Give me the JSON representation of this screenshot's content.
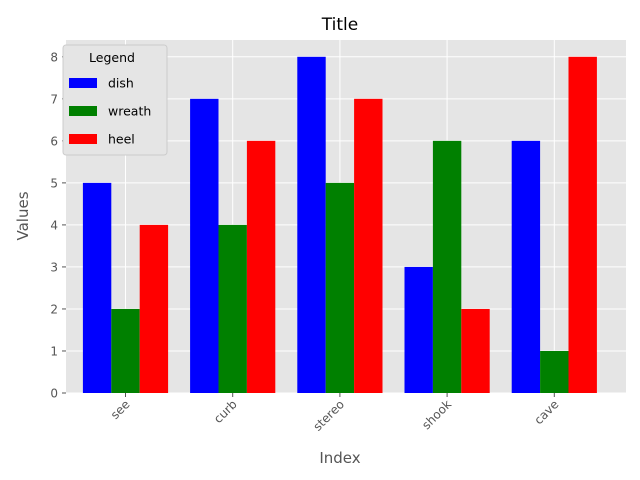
{
  "chart_data": {
    "type": "bar",
    "title": "Title",
    "xlabel": "Index",
    "ylabel": "Values",
    "categories": [
      "see",
      "curb",
      "stereo",
      "shook",
      "cave"
    ],
    "series": [
      {
        "name": "dish",
        "values": [
          5,
          7,
          8,
          3,
          6
        ],
        "color": "#0000ff"
      },
      {
        "name": "wreath",
        "values": [
          2,
          4,
          5,
          6,
          1
        ],
        "color": "#008000"
      },
      {
        "name": "heel",
        "values": [
          4,
          6,
          7,
          2,
          8
        ],
        "color": "#ff0000"
      }
    ],
    "ylim": [
      0,
      8.4
    ],
    "yticks": [
      0,
      1,
      2,
      3,
      4,
      5,
      6,
      7,
      8
    ],
    "grid": true,
    "legend": {
      "title": "Legend",
      "placement": "top-left"
    },
    "colors": {
      "background": "#e5e5e5",
      "grid": "#ffffff"
    }
  }
}
